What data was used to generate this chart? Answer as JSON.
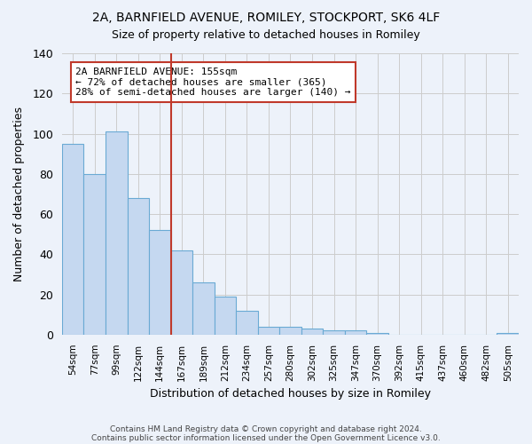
{
  "title1": "2A, BARNFIELD AVENUE, ROMILEY, STOCKPORT, SK6 4LF",
  "title2": "Size of property relative to detached houses in Romiley",
  "xlabel": "Distribution of detached houses by size in Romiley",
  "ylabel": "Number of detached properties",
  "categories": [
    "54sqm",
    "77sqm",
    "99sqm",
    "122sqm",
    "144sqm",
    "167sqm",
    "189sqm",
    "212sqm",
    "234sqm",
    "257sqm",
    "280sqm",
    "302sqm",
    "325sqm",
    "347sqm",
    "370sqm",
    "392sqm",
    "415sqm",
    "437sqm",
    "460sqm",
    "482sqm",
    "505sqm"
  ],
  "values": [
    95,
    80,
    101,
    68,
    52,
    42,
    26,
    19,
    12,
    4,
    4,
    3,
    2,
    2,
    1,
    0,
    0,
    0,
    0,
    0,
    1
  ],
  "bar_color": "#c5d8f0",
  "bar_edge_color": "#6aaad4",
  "vline_pos": 5,
  "vline_color": "#c0392b",
  "ann_line1": "2A BARNFIELD AVENUE: 155sqm",
  "ann_line2": "← 72% of detached houses are smaller (365)",
  "ann_line3": "28% of semi-detached houses are larger (140) →",
  "annotation_box_color": "white",
  "annotation_box_edge": "#c0392b",
  "ylim": [
    0,
    140
  ],
  "yticks": [
    0,
    20,
    40,
    60,
    80,
    100,
    120,
    140
  ],
  "bg_color": "#edf2fa",
  "grid_color": "#cccccc",
  "footer1": "Contains HM Land Registry data © Crown copyright and database right 2024.",
  "footer2": "Contains public sector information licensed under the Open Government Licence v3.0."
}
